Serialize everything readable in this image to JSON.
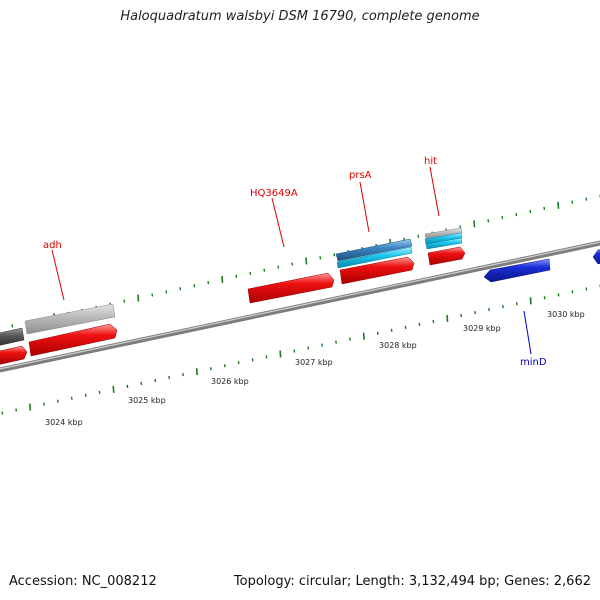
{
  "title": "Haloquadratum walsbyi DSM 16790, complete genome",
  "footer": {
    "accession": "Accession: NC_008212",
    "stats": "Topology: circular; Length: 3,132,494 bp; Genes: 2,662"
  },
  "colors": {
    "backbone": "#8c8c8c",
    "tick": "#1e7a1e",
    "forward_cds": "#ee1111",
    "reverse_cds": "#1a2fd6",
    "rna_blue": "#3e86c4",
    "rna_cyan": "#1ec8ee",
    "gray_light": "#bdbdbd",
    "gray_dark": "#5c5c5c",
    "label_forward": "#dd0000",
    "label_reverse": "#0000cc"
  },
  "axis": {
    "labels": [
      "3024 kbp",
      "3025 kbp",
      "3026 kbp",
      "3027 kbp",
      "3028 kbp",
      "3029 kbp",
      "3030 kbp"
    ]
  },
  "genes": [
    {
      "name": "adh",
      "strand": "forward"
    },
    {
      "name": "HQ3649A",
      "strand": "forward"
    },
    {
      "name": "prsA",
      "strand": "forward"
    },
    {
      "name": "hit",
      "strand": "forward"
    },
    {
      "name": "minD",
      "strand": "reverse"
    }
  ]
}
